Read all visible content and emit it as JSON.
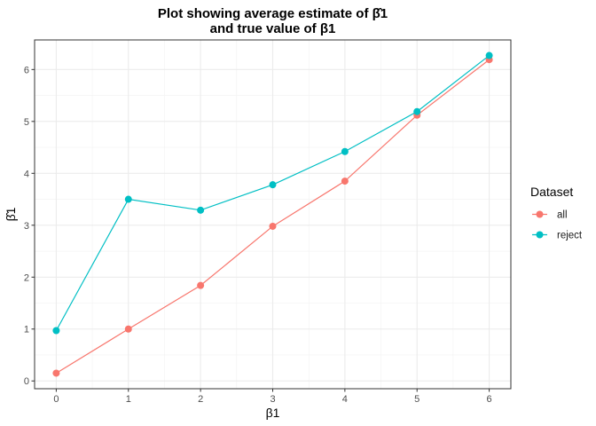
{
  "chart_data": {
    "type": "line",
    "title": "Plot showing average estimate of β̂1\nand true value of β1",
    "xlabel": "β1",
    "ylabel": "β̂1",
    "x": [
      0,
      1,
      2,
      3,
      4,
      5,
      6
    ],
    "xticks": [
      "0",
      "1",
      "2",
      "3",
      "4",
      "5",
      "6"
    ],
    "yticks": [
      "0",
      "1",
      "2",
      "3",
      "4",
      "5",
      "6"
    ],
    "xlim": [
      -0.3,
      6.3
    ],
    "ylim": [
      -0.15,
      6.57
    ],
    "grid": true,
    "legend": {
      "title": "Dataset",
      "position": "right"
    },
    "series": [
      {
        "name": "all",
        "color": "#F8766D",
        "values": [
          0.15,
          1.0,
          1.84,
          2.98,
          3.85,
          5.12,
          6.19
        ]
      },
      {
        "name": "reject",
        "color": "#00BFC4",
        "values": [
          0.97,
          3.5,
          3.29,
          3.78,
          4.42,
          5.19,
          6.27
        ]
      }
    ]
  }
}
